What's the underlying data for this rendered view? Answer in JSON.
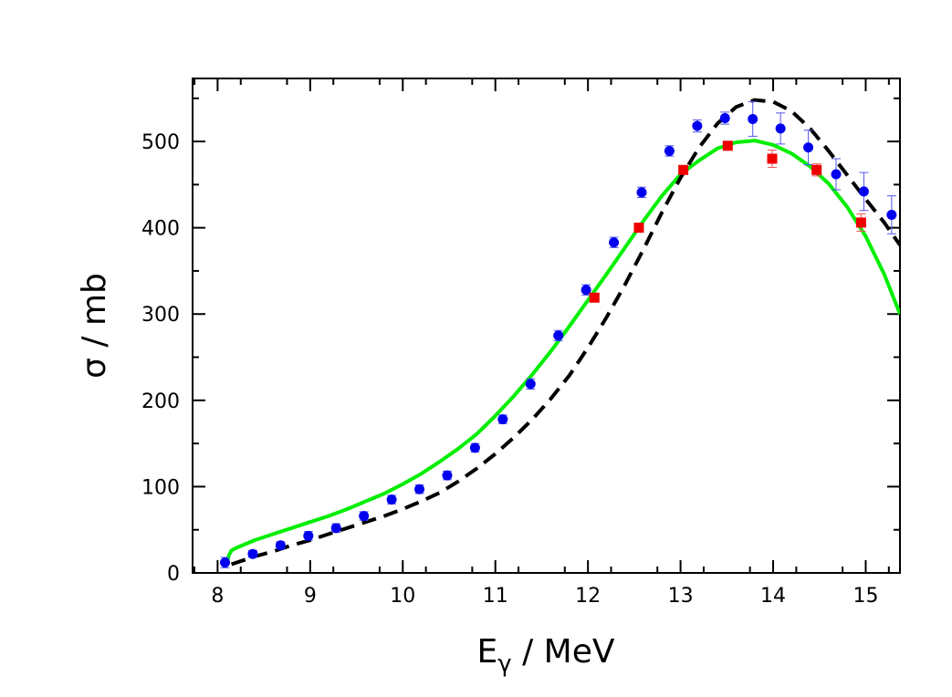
{
  "chart_data": {
    "type": "scatter",
    "title": "",
    "xlabel_main": "E",
    "xlabel_sub": "γ",
    "xlabel_unit": " / MeV",
    "ylabel": "σ / mb",
    "xlim": [
      7.73,
      15.37
    ],
    "ylim": [
      0,
      573
    ],
    "x_ticks": [
      8,
      9,
      10,
      11,
      12,
      13,
      14,
      15
    ],
    "y_ticks": [
      0,
      100,
      200,
      300,
      400,
      500
    ],
    "x_tick_labels": [
      "8",
      "9",
      "10",
      "11",
      "12",
      "13",
      "14",
      "15"
    ],
    "y_tick_labels": [
      "0",
      "100",
      "200",
      "300",
      "400",
      "500"
    ],
    "grid": false,
    "series": [
      {
        "marker": "circle",
        "color": "#0000ee",
        "errorbar_color": "#5555ee",
        "points": [
          {
            "x": 8.08,
            "y": 12,
            "err": 6
          },
          {
            "x": 8.38,
            "y": 22,
            "err": 4
          },
          {
            "x": 8.68,
            "y": 32,
            "err": 4
          },
          {
            "x": 8.98,
            "y": 43,
            "err": 5
          },
          {
            "x": 9.28,
            "y": 52,
            "err": 5
          },
          {
            "x": 9.58,
            "y": 66,
            "err": 5
          },
          {
            "x": 9.88,
            "y": 85,
            "err": 5
          },
          {
            "x": 10.18,
            "y": 97,
            "err": 5
          },
          {
            "x": 10.48,
            "y": 113,
            "err": 5
          },
          {
            "x": 10.78,
            "y": 145,
            "err": 5
          },
          {
            "x": 11.08,
            "y": 178,
            "err": 5
          },
          {
            "x": 11.38,
            "y": 219,
            "err": 6
          },
          {
            "x": 11.68,
            "y": 275,
            "err": 6
          },
          {
            "x": 11.98,
            "y": 328,
            "err": 6
          },
          {
            "x": 12.28,
            "y": 383,
            "err": 6
          },
          {
            "x": 12.58,
            "y": 441,
            "err": 6
          },
          {
            "x": 12.88,
            "y": 489,
            "err": 6
          },
          {
            "x": 13.18,
            "y": 518,
            "err": 7
          },
          {
            "x": 13.48,
            "y": 527,
            "err": 7
          },
          {
            "x": 13.78,
            "y": 526,
            "err": 20
          },
          {
            "x": 14.08,
            "y": 515,
            "err": 18
          },
          {
            "x": 14.38,
            "y": 493,
            "err": 20
          },
          {
            "x": 14.68,
            "y": 462,
            "err": 18
          },
          {
            "x": 14.98,
            "y": 442,
            "err": 22
          },
          {
            "x": 15.28,
            "y": 415,
            "err": 22
          }
        ]
      },
      {
        "marker": "square",
        "color": "#ee0000",
        "errorbar_color": "#ee5555",
        "points": [
          {
            "x": 12.07,
            "y": 319,
            "err": 5
          },
          {
            "x": 12.55,
            "y": 400,
            "err": 5
          },
          {
            "x": 13.03,
            "y": 467,
            "err": 5
          },
          {
            "x": 13.51,
            "y": 495,
            "err": 5
          },
          {
            "x": 13.99,
            "y": 480,
            "err": 10
          },
          {
            "x": 14.47,
            "y": 467,
            "err": 7
          },
          {
            "x": 14.95,
            "y": 406,
            "err": 10
          }
        ]
      },
      {
        "marker": "line",
        "style": "solid",
        "color": "#00ee00",
        "x": [
          8.1,
          8.12,
          8.15,
          8.2,
          8.4,
          8.6,
          8.8,
          9.0,
          9.2,
          9.4,
          9.6,
          9.8,
          10.0,
          10.2,
          10.4,
          10.6,
          10.8,
          11.0,
          11.2,
          11.4,
          11.6,
          11.8,
          12.0,
          12.2,
          12.4,
          12.6,
          12.8,
          13.0,
          13.2,
          13.4,
          13.6,
          13.8,
          14.0,
          14.2,
          14.4,
          14.6,
          14.8,
          15.0,
          15.2,
          15.37
        ],
        "y": [
          10,
          20,
          26,
          29,
          38,
          45,
          52,
          59,
          66,
          74,
          83,
          92,
          103,
          115,
          129,
          144,
          161,
          182,
          205,
          230,
          257,
          286,
          316,
          346,
          377,
          408,
          437,
          462,
          478,
          492,
          499,
          501,
          496,
          486,
          471,
          451,
          424,
          390,
          346,
          300
        ]
      },
      {
        "marker": "line",
        "style": "dashed",
        "color": "#000000",
        "x": [
          8.15,
          8.4,
          8.6,
          8.8,
          9.0,
          9.2,
          9.4,
          9.6,
          9.8,
          10.0,
          10.2,
          10.4,
          10.6,
          10.8,
          11.0,
          11.2,
          11.4,
          11.6,
          11.8,
          12.0,
          12.2,
          12.4,
          12.6,
          12.8,
          13.0,
          13.2,
          13.4,
          13.6,
          13.8,
          14.0,
          14.2,
          14.4,
          14.6,
          14.8,
          15.0,
          15.2,
          15.37
        ],
        "y": [
          10,
          19,
          25,
          32,
          38,
          45,
          52,
          59,
          66,
          74,
          83,
          93,
          106,
          121,
          138,
          157,
          178,
          202,
          229,
          261,
          296,
          334,
          375,
          418,
          458,
          493,
          521,
          540,
          548,
          546,
          535,
          515,
          489,
          461,
          433,
          406,
          380
        ]
      }
    ]
  }
}
